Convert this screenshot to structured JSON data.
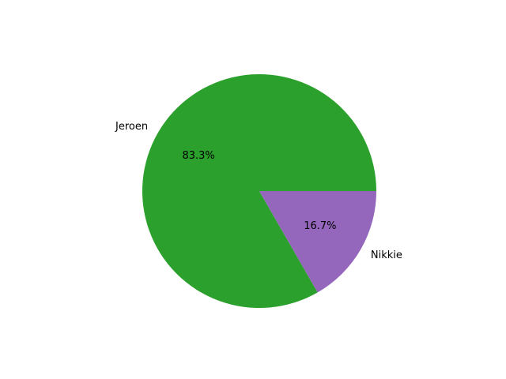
{
  "chart_data": {
    "type": "pie",
    "title": "",
    "slices": [
      {
        "label": "Jeroen",
        "value": 83.3,
        "pct_label": "83.3%",
        "color": "#2ca02c"
      },
      {
        "label": "Nikkie",
        "value": 16.7,
        "pct_label": "16.7%",
        "color": "#9467bd"
      }
    ],
    "start_angle_deg": 0,
    "direction": "counterclockwise",
    "legend": "none"
  }
}
